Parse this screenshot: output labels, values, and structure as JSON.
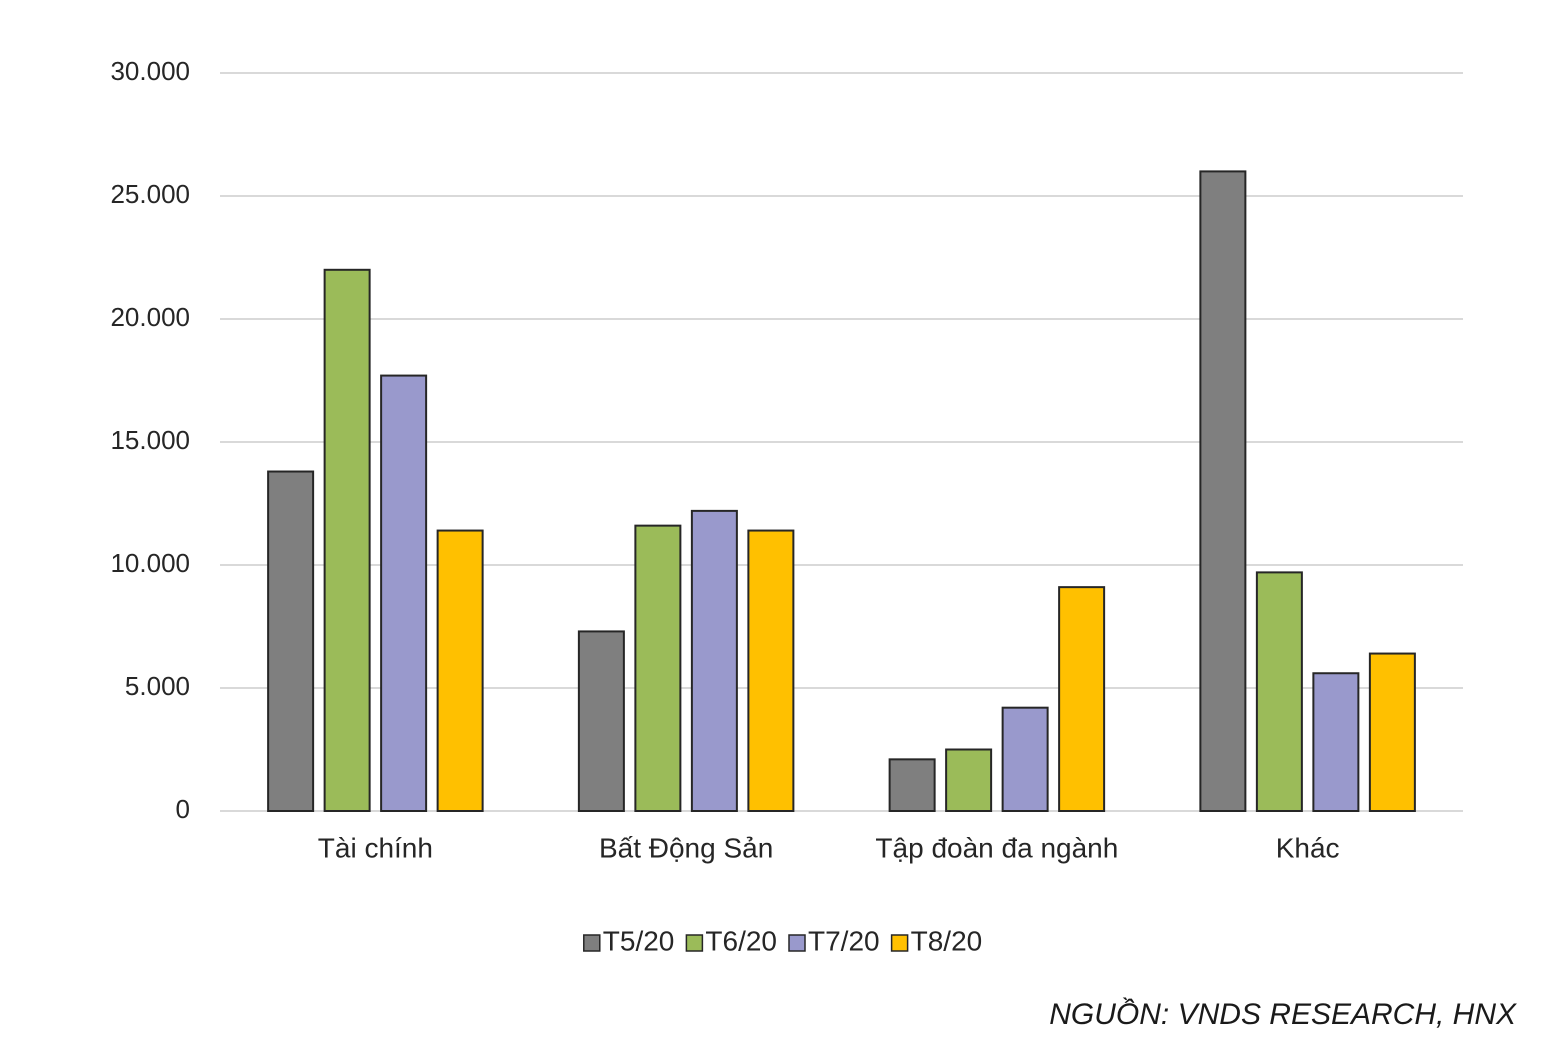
{
  "chart_data": {
    "type": "bar",
    "categories": [
      "Tài chính",
      "Bất Động Sản",
      "Tập đoàn đa ngành",
      "Khác"
    ],
    "series": [
      {
        "name": "T5/20",
        "color": "#7f7f7f",
        "values": [
          13800,
          7300,
          2100,
          26000
        ]
      },
      {
        "name": "T6/20",
        "color": "#9bbb59",
        "values": [
          22000,
          11600,
          2500,
          9700
        ]
      },
      {
        "name": "T7/20",
        "color": "#9999cc",
        "values": [
          17700,
          12200,
          4200,
          5600
        ]
      },
      {
        "name": "T8/20",
        "color": "#ffc000",
        "values": [
          11400,
          11400,
          9100,
          6400
        ]
      }
    ],
    "ylim": [
      0,
      30000
    ],
    "yticks": [
      0,
      {
        "value": 5000,
        "label": "5.000"
      },
      {
        "value": 10000,
        "label": "10.000"
      },
      {
        "value": 15000,
        "label": "15.000"
      },
      {
        "value": 20000,
        "label": "20.000"
      },
      {
        "value": 25000,
        "label": "25.000"
      },
      {
        "value": 30000,
        "label": "30.000"
      }
    ],
    "grid": true,
    "legend": "bottom",
    "source": "NGUỒN: VNDS RESEARCH, HNX"
  }
}
